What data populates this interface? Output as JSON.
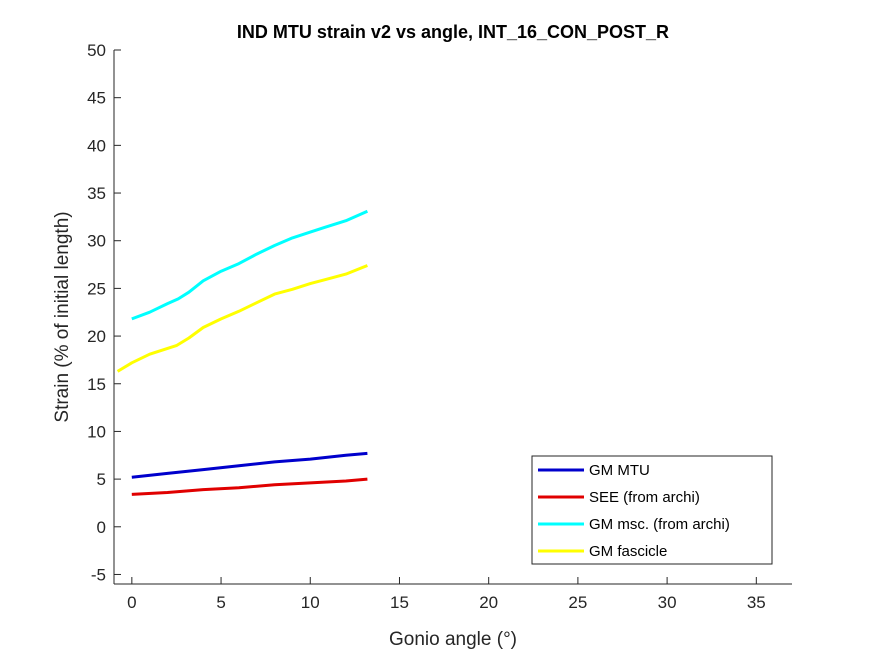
{
  "chart_data": {
    "type": "line",
    "title": "IND MTU strain v2 vs angle, INT_16_CON_POST_R",
    "xlabel": "Gonio angle (°)",
    "ylabel": "Strain (% of initial length)",
    "xlim": [
      -1,
      37
    ],
    "ylim": [
      -6,
      50
    ],
    "xticks": [
      0,
      5,
      10,
      15,
      20,
      25,
      30,
      35
    ],
    "xtick_labels": [
      "0",
      "5",
      "10",
      "15",
      "20",
      "25",
      "30",
      "35"
    ],
    "yticks": [
      -5,
      0,
      5,
      10,
      15,
      20,
      25,
      30,
      35,
      40,
      45,
      50
    ],
    "ytick_labels": [
      "-5",
      "0",
      "5",
      "10",
      "15",
      "20",
      "25",
      "30",
      "35",
      "40",
      "45",
      "50"
    ],
    "grid": false,
    "legend_position": "bottom-right",
    "series": [
      {
        "name": "GM MTU",
        "color": "#0000cc",
        "x": [
          0,
          2,
          4,
          6,
          8,
          10,
          12,
          13.2
        ],
        "y": [
          5.2,
          5.6,
          6.0,
          6.4,
          6.8,
          7.1,
          7.5,
          7.7
        ]
      },
      {
        "name": "SEE (from archi)",
        "color": "#e00000",
        "x": [
          0,
          2,
          4,
          6,
          8,
          10,
          12,
          13.2
        ],
        "y": [
          3.4,
          3.6,
          3.9,
          4.1,
          4.4,
          4.6,
          4.8,
          5.0
        ]
      },
      {
        "name": "GM msc. (from archi)",
        "color": "#00ffff",
        "x": [
          0,
          1,
          2,
          2.6,
          3.2,
          4,
          5,
          6,
          7,
          8,
          9,
          10,
          10.8,
          12,
          13.2
        ],
        "y": [
          21.8,
          22.5,
          23.4,
          23.9,
          24.6,
          25.8,
          26.8,
          27.6,
          28.6,
          29.5,
          30.3,
          30.9,
          31.4,
          32.1,
          33.1
        ]
      },
      {
        "name": "GM fascicle",
        "color": "#ffff00",
        "x": [
          -0.8,
          0,
          1,
          2.5,
          3.2,
          4,
          5,
          6,
          7,
          8,
          9,
          10,
          10.8,
          12,
          13.2
        ],
        "y": [
          16.3,
          17.2,
          18.1,
          19.0,
          19.8,
          20.9,
          21.8,
          22.6,
          23.5,
          24.4,
          24.9,
          25.5,
          25.9,
          26.5,
          27.4
        ]
      }
    ]
  }
}
